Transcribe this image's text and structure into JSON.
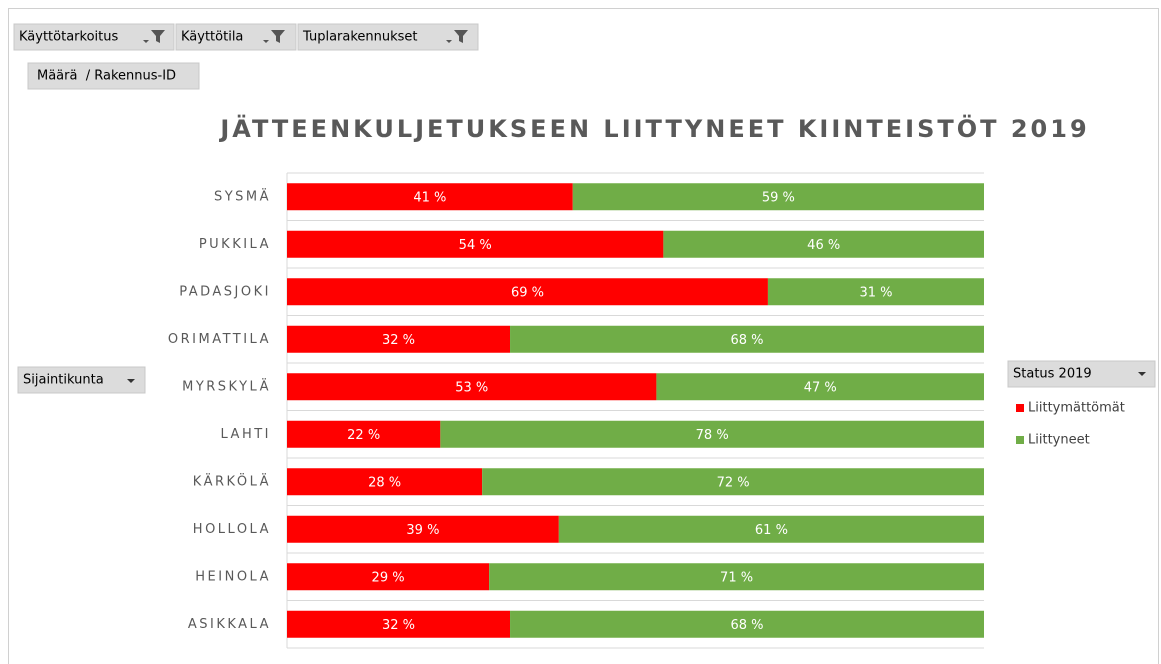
{
  "field_buttons": {
    "filters": [
      "Käyttötarkoitus",
      "Käyttötila",
      "Tuplarakennukset"
    ],
    "values_field": "Määrä  / Rakennus-ID",
    "axis_field": "Sijaintikunta",
    "legend_field": "Status 2019"
  },
  "chart_data": {
    "type": "stacked_bar_horizontal",
    "title": "JÄTTEENKULJETUKSEEN LIITTYNEET KIINTEISTÖT 2019",
    "categories": [
      "SYSMÄ",
      "PUKKILA",
      "PADASJOKI",
      "ORIMATTILA",
      "MYRSKYLÄ",
      "LAHTI",
      "KÄRKÖLÄ",
      "HOLLOLA",
      "HEINOLA",
      "ASIKKALA"
    ],
    "series": [
      {
        "name": "Liittymättömät",
        "color": "#ff0000",
        "values": [
          41,
          54,
          69,
          32,
          53,
          22,
          28,
          39,
          29,
          32
        ],
        "value_labels": [
          "41 %",
          "54 %",
          "69 %",
          "32 %",
          "53 %",
          "22 %",
          "28 %",
          "39 %",
          "29 %",
          "32 %"
        ]
      },
      {
        "name": "Liittyneet",
        "color": "#70ad47",
        "values": [
          59,
          46,
          31,
          68,
          47,
          78,
          72,
          61,
          71,
          68
        ],
        "value_labels": [
          "59 %",
          "46 %",
          "31 %",
          "68 %",
          "47 %",
          "78 %",
          "72 %",
          "61 %",
          "71 %",
          "68 %"
        ]
      }
    ],
    "xlim": [
      0,
      100
    ],
    "grid": true,
    "legend": "right"
  }
}
